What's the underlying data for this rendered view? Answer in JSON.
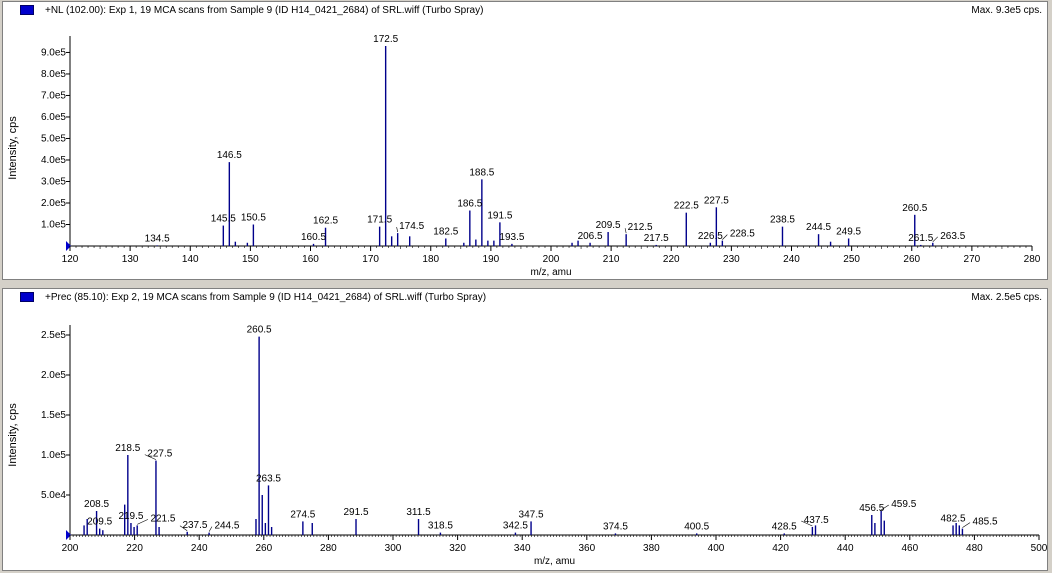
{
  "panels": [
    {
      "title": "+NL (102.00): Exp 1, 19 MCA scans from Sample 9 (ID H14_0421_2684) of SRL.wiff (Turbo Spray)",
      "max_label": "Max. 9.3e5 cps."
    },
    {
      "title": "+Prec (85.10): Exp 2, 19 MCA scans from Sample 9 (ID H14_0421_2684) of SRL.wiff (Turbo Spray)",
      "max_label": "Max. 2.5e5 cps."
    }
  ],
  "colors": {
    "peak": "#00008b",
    "axis": "#000000",
    "label": "#000000",
    "marker": "#0000cc"
  },
  "chart_data": [
    {
      "type": "bar",
      "title": "+NL (102.00): Exp 1, 19 MCA scans from Sample 9 (ID H14_0421_2684) of SRL.wiff (Turbo Spray)",
      "xlabel": "m/z, amu",
      "ylabel": "Intensity, cps",
      "xlim": [
        120,
        280
      ],
      "ylim": [
        0,
        930000
      ],
      "xticks": [
        "120",
        "130",
        "140",
        "150",
        "160",
        "170",
        "180",
        "190",
        "200",
        "210",
        "220",
        "230",
        "240",
        "250",
        "260",
        "270",
        "280"
      ],
      "yticks": [
        "1.0e5",
        "2.0e5",
        "3.0e5",
        "4.0e5",
        "5.0e5",
        "6.0e5",
        "7.0e5",
        "8.0e5",
        "9.0e5"
      ],
      "ytick_values": [
        100000,
        200000,
        300000,
        400000,
        500000,
        600000,
        700000,
        800000,
        900000
      ],
      "peaks": [
        {
          "x": 134.5,
          "y": 3000,
          "label": "134.5"
        },
        {
          "x": 145.5,
          "y": 95000,
          "label": "145.5"
        },
        {
          "x": 146.5,
          "y": 390000,
          "label": "146.5"
        },
        {
          "x": 147.5,
          "y": 20000
        },
        {
          "x": 149.5,
          "y": 15000
        },
        {
          "x": 150.5,
          "y": 100000,
          "label": "150.5"
        },
        {
          "x": 160.5,
          "y": 10000,
          "label": "160.5"
        },
        {
          "x": 162.5,
          "y": 85000,
          "label": "162.5"
        },
        {
          "x": 171.5,
          "y": 90000,
          "label": "171.5"
        },
        {
          "x": 172.5,
          "y": 930000,
          "label": "172.5"
        },
        {
          "x": 173.5,
          "y": 45000
        },
        {
          "x": 174.5,
          "y": 60000,
          "label": "174.5"
        },
        {
          "x": 176.5,
          "y": 45000
        },
        {
          "x": 182.5,
          "y": 35000,
          "label": "182.5"
        },
        {
          "x": 185.5,
          "y": 15000
        },
        {
          "x": 186.5,
          "y": 165000,
          "label": "186.5"
        },
        {
          "x": 187.5,
          "y": 30000
        },
        {
          "x": 188.5,
          "y": 310000,
          "label": "188.5"
        },
        {
          "x": 189.5,
          "y": 25000
        },
        {
          "x": 190.5,
          "y": 25000
        },
        {
          "x": 191.5,
          "y": 110000,
          "label": "191.5"
        },
        {
          "x": 193.5,
          "y": 10000,
          "label": "193.5"
        },
        {
          "x": 203.5,
          "y": 15000
        },
        {
          "x": 204.5,
          "y": 25000
        },
        {
          "x": 206.5,
          "y": 15000,
          "label": "206.5"
        },
        {
          "x": 209.5,
          "y": 65000,
          "label": "209.5"
        },
        {
          "x": 212.5,
          "y": 55000,
          "label": "212.5"
        },
        {
          "x": 217.5,
          "y": 5000,
          "label": "217.5"
        },
        {
          "x": 222.5,
          "y": 155000,
          "label": "222.5"
        },
        {
          "x": 226.5,
          "y": 15000,
          "label": "226.5"
        },
        {
          "x": 227.5,
          "y": 180000,
          "label": "227.5"
        },
        {
          "x": 228.5,
          "y": 25000,
          "label": "228.5"
        },
        {
          "x": 238.5,
          "y": 90000,
          "label": "238.5"
        },
        {
          "x": 244.5,
          "y": 55000,
          "label": "244.5"
        },
        {
          "x": 246.5,
          "y": 20000
        },
        {
          "x": 249.5,
          "y": 35000,
          "label": "249.5"
        },
        {
          "x": 260.5,
          "y": 145000,
          "label": "260.5"
        },
        {
          "x": 261.5,
          "y": 5000,
          "label": "261.5"
        },
        {
          "x": 263.5,
          "y": 15000,
          "label": "263.5"
        }
      ]
    },
    {
      "type": "bar",
      "title": "+Prec (85.10): Exp 2, 19 MCA scans from Sample 9 (ID H14_0421_2684) of SRL.wiff (Turbo Spray)",
      "xlabel": "m/z, amu",
      "ylabel": "Intensity, cps",
      "xlim": [
        200,
        510
      ],
      "ylim": [
        0,
        250000
      ],
      "xticks": [
        "200",
        "220",
        "240",
        "260",
        "280",
        "300",
        "320",
        "340",
        "360",
        "380",
        "400",
        "420",
        "440",
        "460",
        "480",
        "500"
      ],
      "yticks": [
        "5.0e4",
        "1.0e5",
        "1.5e5",
        "2.0e5",
        "2.5e5"
      ],
      "ytick_values": [
        50000,
        100000,
        150000,
        200000,
        250000
      ],
      "peaks": [
        {
          "x": 204.5,
          "y": 12000
        },
        {
          "x": 205.5,
          "y": 20000
        },
        {
          "x": 208.5,
          "y": 30000,
          "label": "208.5"
        },
        {
          "x": 209.5,
          "y": 8000,
          "label": "209.5"
        },
        {
          "x": 210.5,
          "y": 6000
        },
        {
          "x": 217.5,
          "y": 38000
        },
        {
          "x": 218.5,
          "y": 100000,
          "label": "218.5"
        },
        {
          "x": 219.5,
          "y": 15000,
          "label": "219.5"
        },
        {
          "x": 220.5,
          "y": 10000
        },
        {
          "x": 221.5,
          "y": 12000,
          "label": "221.5"
        },
        {
          "x": 227.5,
          "y": 93000,
          "label": "227.5"
        },
        {
          "x": 228.5,
          "y": 10000
        },
        {
          "x": 237.5,
          "y": 4000,
          "label": "237.5"
        },
        {
          "x": 244.5,
          "y": 3000,
          "label": "244.5"
        },
        {
          "x": 259.5,
          "y": 20000
        },
        {
          "x": 260.5,
          "y": 248000,
          "label": "260.5"
        },
        {
          "x": 261.5,
          "y": 50000
        },
        {
          "x": 262.5,
          "y": 15000
        },
        {
          "x": 263.5,
          "y": 62000,
          "label": "263.5"
        },
        {
          "x": 264.5,
          "y": 10000
        },
        {
          "x": 274.5,
          "y": 17000,
          "label": "274.5"
        },
        {
          "x": 277.5,
          "y": 15000
        },
        {
          "x": 291.5,
          "y": 20000,
          "label": "291.5"
        },
        {
          "x": 311.5,
          "y": 20000,
          "label": "311.5"
        },
        {
          "x": 318.5,
          "y": 3000,
          "label": "318.5"
        },
        {
          "x": 342.5,
          "y": 3000,
          "label": "342.5"
        },
        {
          "x": 347.5,
          "y": 17000,
          "label": "347.5"
        },
        {
          "x": 374.5,
          "y": 2000,
          "label": "374.5"
        },
        {
          "x": 400.5,
          "y": 2000,
          "label": "400.5"
        },
        {
          "x": 428.5,
          "y": 2000,
          "label": "428.5"
        },
        {
          "x": 437.5,
          "y": 10000,
          "label": "437.5"
        },
        {
          "x": 438.5,
          "y": 12000
        },
        {
          "x": 456.5,
          "y": 25000,
          "label": "456.5"
        },
        {
          "x": 457.5,
          "y": 15000
        },
        {
          "x": 459.5,
          "y": 30000,
          "label": "459.5"
        },
        {
          "x": 460.5,
          "y": 18000
        },
        {
          "x": 482.5,
          "y": 12000,
          "label": "482.5"
        },
        {
          "x": 483.5,
          "y": 15000
        },
        {
          "x": 484.5,
          "y": 12000
        },
        {
          "x": 485.5,
          "y": 8000,
          "label": "485.5"
        }
      ]
    }
  ]
}
